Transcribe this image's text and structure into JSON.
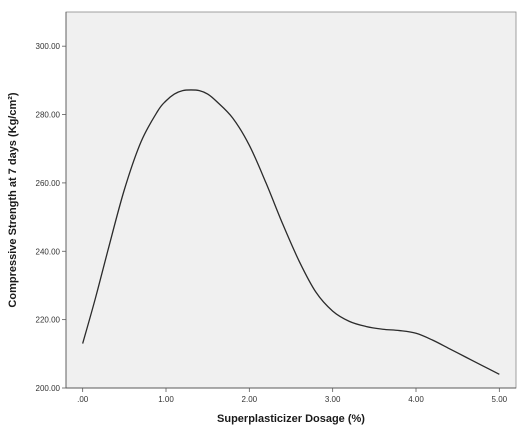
{
  "chart_data": {
    "type": "line",
    "title": "",
    "xlabel": "Superplasticizer Dosage (%)",
    "ylabel": "Compressive Strength at 7 days (Kg/cm²)",
    "xlim": [
      -0.2,
      5.2
    ],
    "ylim": [
      200,
      310
    ],
    "x_ticks": [
      0,
      1,
      2,
      3,
      4,
      5
    ],
    "x_tick_labels": [
      ".00",
      "1.00",
      "2.00",
      "3.00",
      "4.00",
      "5.00"
    ],
    "y_ticks": [
      200,
      220,
      240,
      260,
      280,
      300
    ],
    "y_tick_labels": [
      "200.00",
      "220.00",
      "240.00",
      "260.00",
      "280.00",
      "300.00"
    ],
    "grid": false,
    "legend": "none",
    "plot_background": "#f0f0f0",
    "series": [
      {
        "color": "#2b2b2b",
        "x": [
          0.0,
          0.15,
          0.3,
          0.5,
          0.7,
          0.9,
          1.0,
          1.1,
          1.2,
          1.3,
          1.4,
          1.5,
          1.6,
          1.8,
          2.0,
          2.2,
          2.4,
          2.6,
          2.8,
          3.0,
          3.2,
          3.4,
          3.6,
          3.8,
          4.0,
          4.2,
          4.4,
          4.6,
          4.8,
          5.0
        ],
        "values": [
          213,
          226,
          240,
          258,
          272,
          281,
          284,
          286,
          287,
          287.2,
          287,
          286,
          284,
          279,
          271,
          260,
          248,
          237,
          228,
          222.5,
          219.5,
          218,
          217.2,
          216.8,
          216,
          214,
          211.5,
          209,
          206.5,
          204
        ]
      }
    ]
  }
}
